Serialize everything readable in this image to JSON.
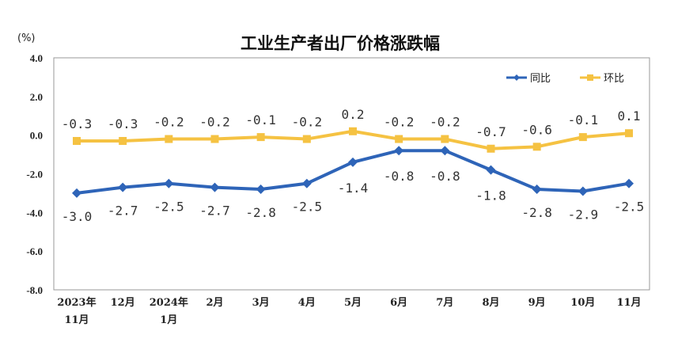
{
  "chart_data": {
    "type": "line",
    "title": "工业生产者出厂价格涨跌幅",
    "unit_label": "(%)",
    "ylim": [
      -8.0,
      4.0
    ],
    "yticks": [
      "4.0",
      "2.0",
      "0.0",
      "-2.0",
      "-4.0",
      "-6.0",
      "-8.0"
    ],
    "ytick_values": [
      4,
      2,
      0,
      -2,
      -4,
      -6,
      -8
    ],
    "categories": [
      "2023年11月",
      "12月",
      "2024年1月",
      "2月",
      "3月",
      "4月",
      "5月",
      "6月",
      "7月",
      "8月",
      "9月",
      "10月",
      "11月"
    ],
    "category_lines": [
      [
        "2023年",
        "11月"
      ],
      [
        "12月"
      ],
      [
        "2024年",
        "1月"
      ],
      [
        "2月"
      ],
      [
        "3月"
      ],
      [
        "4月"
      ],
      [
        "5月"
      ],
      [
        "6月"
      ],
      [
        "7月"
      ],
      [
        "8月"
      ],
      [
        "9月"
      ],
      [
        "10月"
      ],
      [
        "11月"
      ]
    ],
    "legend_position": "top-right",
    "grid": false,
    "series": [
      {
        "name": "同比",
        "color": "#2e64b8",
        "marker": "diamond",
        "values": [
          -3.0,
          -2.7,
          -2.5,
          -2.7,
          -2.8,
          -2.5,
          -1.4,
          -0.8,
          -0.8,
          -1.8,
          -2.8,
          -2.9,
          -2.5
        ],
        "labels": [
          "-3.0",
          "-2.7",
          "-2.5",
          "-2.7",
          "-2.8",
          "-2.5",
          "-1.4",
          "-0.8",
          "-0.8",
          "-1.8",
          "-2.8",
          "-2.9",
          "-2.5"
        ]
      },
      {
        "name": "环比",
        "color": "#f5c242",
        "marker": "square",
        "values": [
          -0.3,
          -0.3,
          -0.2,
          -0.2,
          -0.1,
          -0.2,
          0.2,
          -0.2,
          -0.2,
          -0.7,
          -0.6,
          -0.1,
          0.1
        ],
        "labels": [
          "-0.3",
          "-0.3",
          "-0.2",
          "-0.2",
          "-0.1",
          "-0.2",
          "0.2",
          "-0.2",
          "-0.2",
          "-0.7",
          "-0.6",
          "-0.1",
          "0.1"
        ]
      }
    ]
  }
}
